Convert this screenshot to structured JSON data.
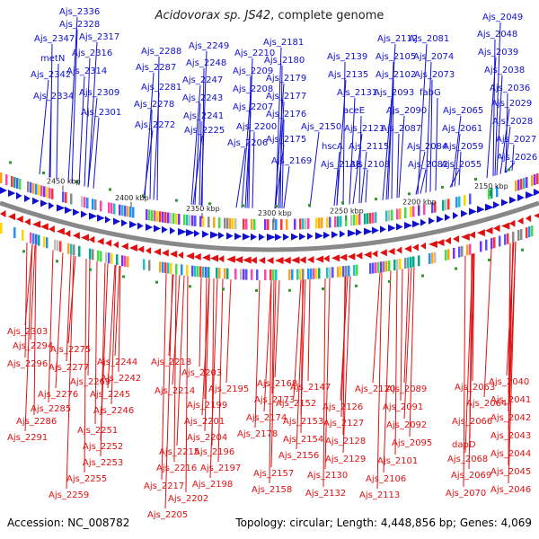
{
  "title": {
    "genus": "Acidovorax sp. JS42",
    "rest": ", complete genome"
  },
  "footer": {
    "accession": "Accession: NC_008782",
    "summary": "Topology: circular; Length: 4,448,856 bp; Genes: 4,069"
  },
  "colors": {
    "forward": "#1010d0",
    "reverse": "#e01010",
    "backbone": "#888888"
  },
  "kbp_ticks": [
    "2450 kbp",
    "2400 kbp",
    "2350 kbp",
    "2300 kbp",
    "2250 kbp",
    "2200 kbp",
    "2150 kbp"
  ],
  "forward_genes": [
    "Ajs_2336",
    "Ajs_2328",
    "Ajs_2347",
    "Ajs_2317",
    "Ajs_2316",
    "metN",
    "Ajs_2342",
    "Ajs_2314",
    "Ajs_2334",
    "Ajs_2309",
    "Ajs_2301",
    "Ajs_2288",
    "Ajs_2287",
    "Ajs_2281",
    "Ajs_2278",
    "Ajs_2272",
    "Ajs_2249",
    "Ajs_2248",
    "Ajs_2247",
    "Ajs_2243",
    "Ajs_2241",
    "Ajs_2225",
    "Ajs_2210",
    "Ajs_2209",
    "Ajs_2208",
    "Ajs_2207",
    "Ajs_2200",
    "Ajs_2206",
    "Ajs_2181",
    "Ajs_2180",
    "Ajs_2179",
    "Ajs_2177",
    "Ajs_2176",
    "Ajs_2175",
    "Ajs_2169",
    "Ajs_2139",
    "Ajs_2135",
    "Ajs_2131",
    "aceE",
    "Ajs_2150",
    "hscA",
    "Ajs_2138",
    "Ajs_2112",
    "Ajs_2105",
    "Ajs_2102",
    "Ajs_2121",
    "Ajs_2115",
    "Ajs_2108",
    "Ajs_2081",
    "Ajs_2074",
    "Ajs_2073",
    "Ajs_2093",
    "Ajs_2090",
    "Ajs_2087",
    "Ajs_2084",
    "Ajs_2082",
    "fabG",
    "Ajs_2065",
    "Ajs_2061",
    "Ajs_2059",
    "Ajs_2055",
    "Ajs_2049",
    "Ajs_2048",
    "Ajs_2039",
    "Ajs_2038",
    "Ajs_2036",
    "Ajs_2029",
    "Ajs_2028",
    "Ajs_2027",
    "Ajs_2026"
  ],
  "reverse_genes": [
    "Ajs_2303",
    "Ajs_2294",
    "Ajs_2296",
    "Ajs_2275",
    "Ajs_2277",
    "Ajs_2269",
    "Ajs_2276",
    "Ajs_2285",
    "Ajs_2286",
    "Ajs_2291",
    "Ajs_2244",
    "Ajs_2242",
    "Ajs_2245",
    "Ajs_2246",
    "Ajs_2251",
    "Ajs_2252",
    "Ajs_2253",
    "Ajs_2255",
    "Ajs_2259",
    "Ajs_2218",
    "Ajs_2203",
    "Ajs_2214",
    "Ajs_2195",
    "Ajs_2199",
    "Ajs_2201",
    "Ajs_2204",
    "Ajs_2196",
    "Ajs_2215",
    "Ajs_2197",
    "Ajs_2216",
    "Ajs_2198",
    "Ajs_2217",
    "Ajs_2202",
    "Ajs_2205",
    "Ajs_2168",
    "Ajs_2173",
    "Ajs_2174",
    "Ajs_2178",
    "Ajs_2147",
    "Ajs_2152",
    "Ajs_2153",
    "Ajs_2154",
    "Ajs_2156",
    "Ajs_2157",
    "Ajs_2158",
    "Ajs_2126",
    "Ajs_2127",
    "Ajs_2128",
    "Ajs_2129",
    "Ajs_2130",
    "Ajs_2132",
    "Ajs_2120",
    "Ajs_2089",
    "Ajs_2091",
    "Ajs_2092",
    "Ajs_2095",
    "Ajs_2101",
    "Ajs_2106",
    "Ajs_2113",
    "Ajs_2063",
    "Ajs_2064",
    "Ajs_2066",
    "dapD",
    "Ajs_2068",
    "Ajs_2069",
    "Ajs_2070",
    "Ajs_2040",
    "Ajs_2041",
    "Ajs_2042",
    "Ajs_2043",
    "Ajs_2044",
    "Ajs_2045",
    "Ajs_2046"
  ]
}
